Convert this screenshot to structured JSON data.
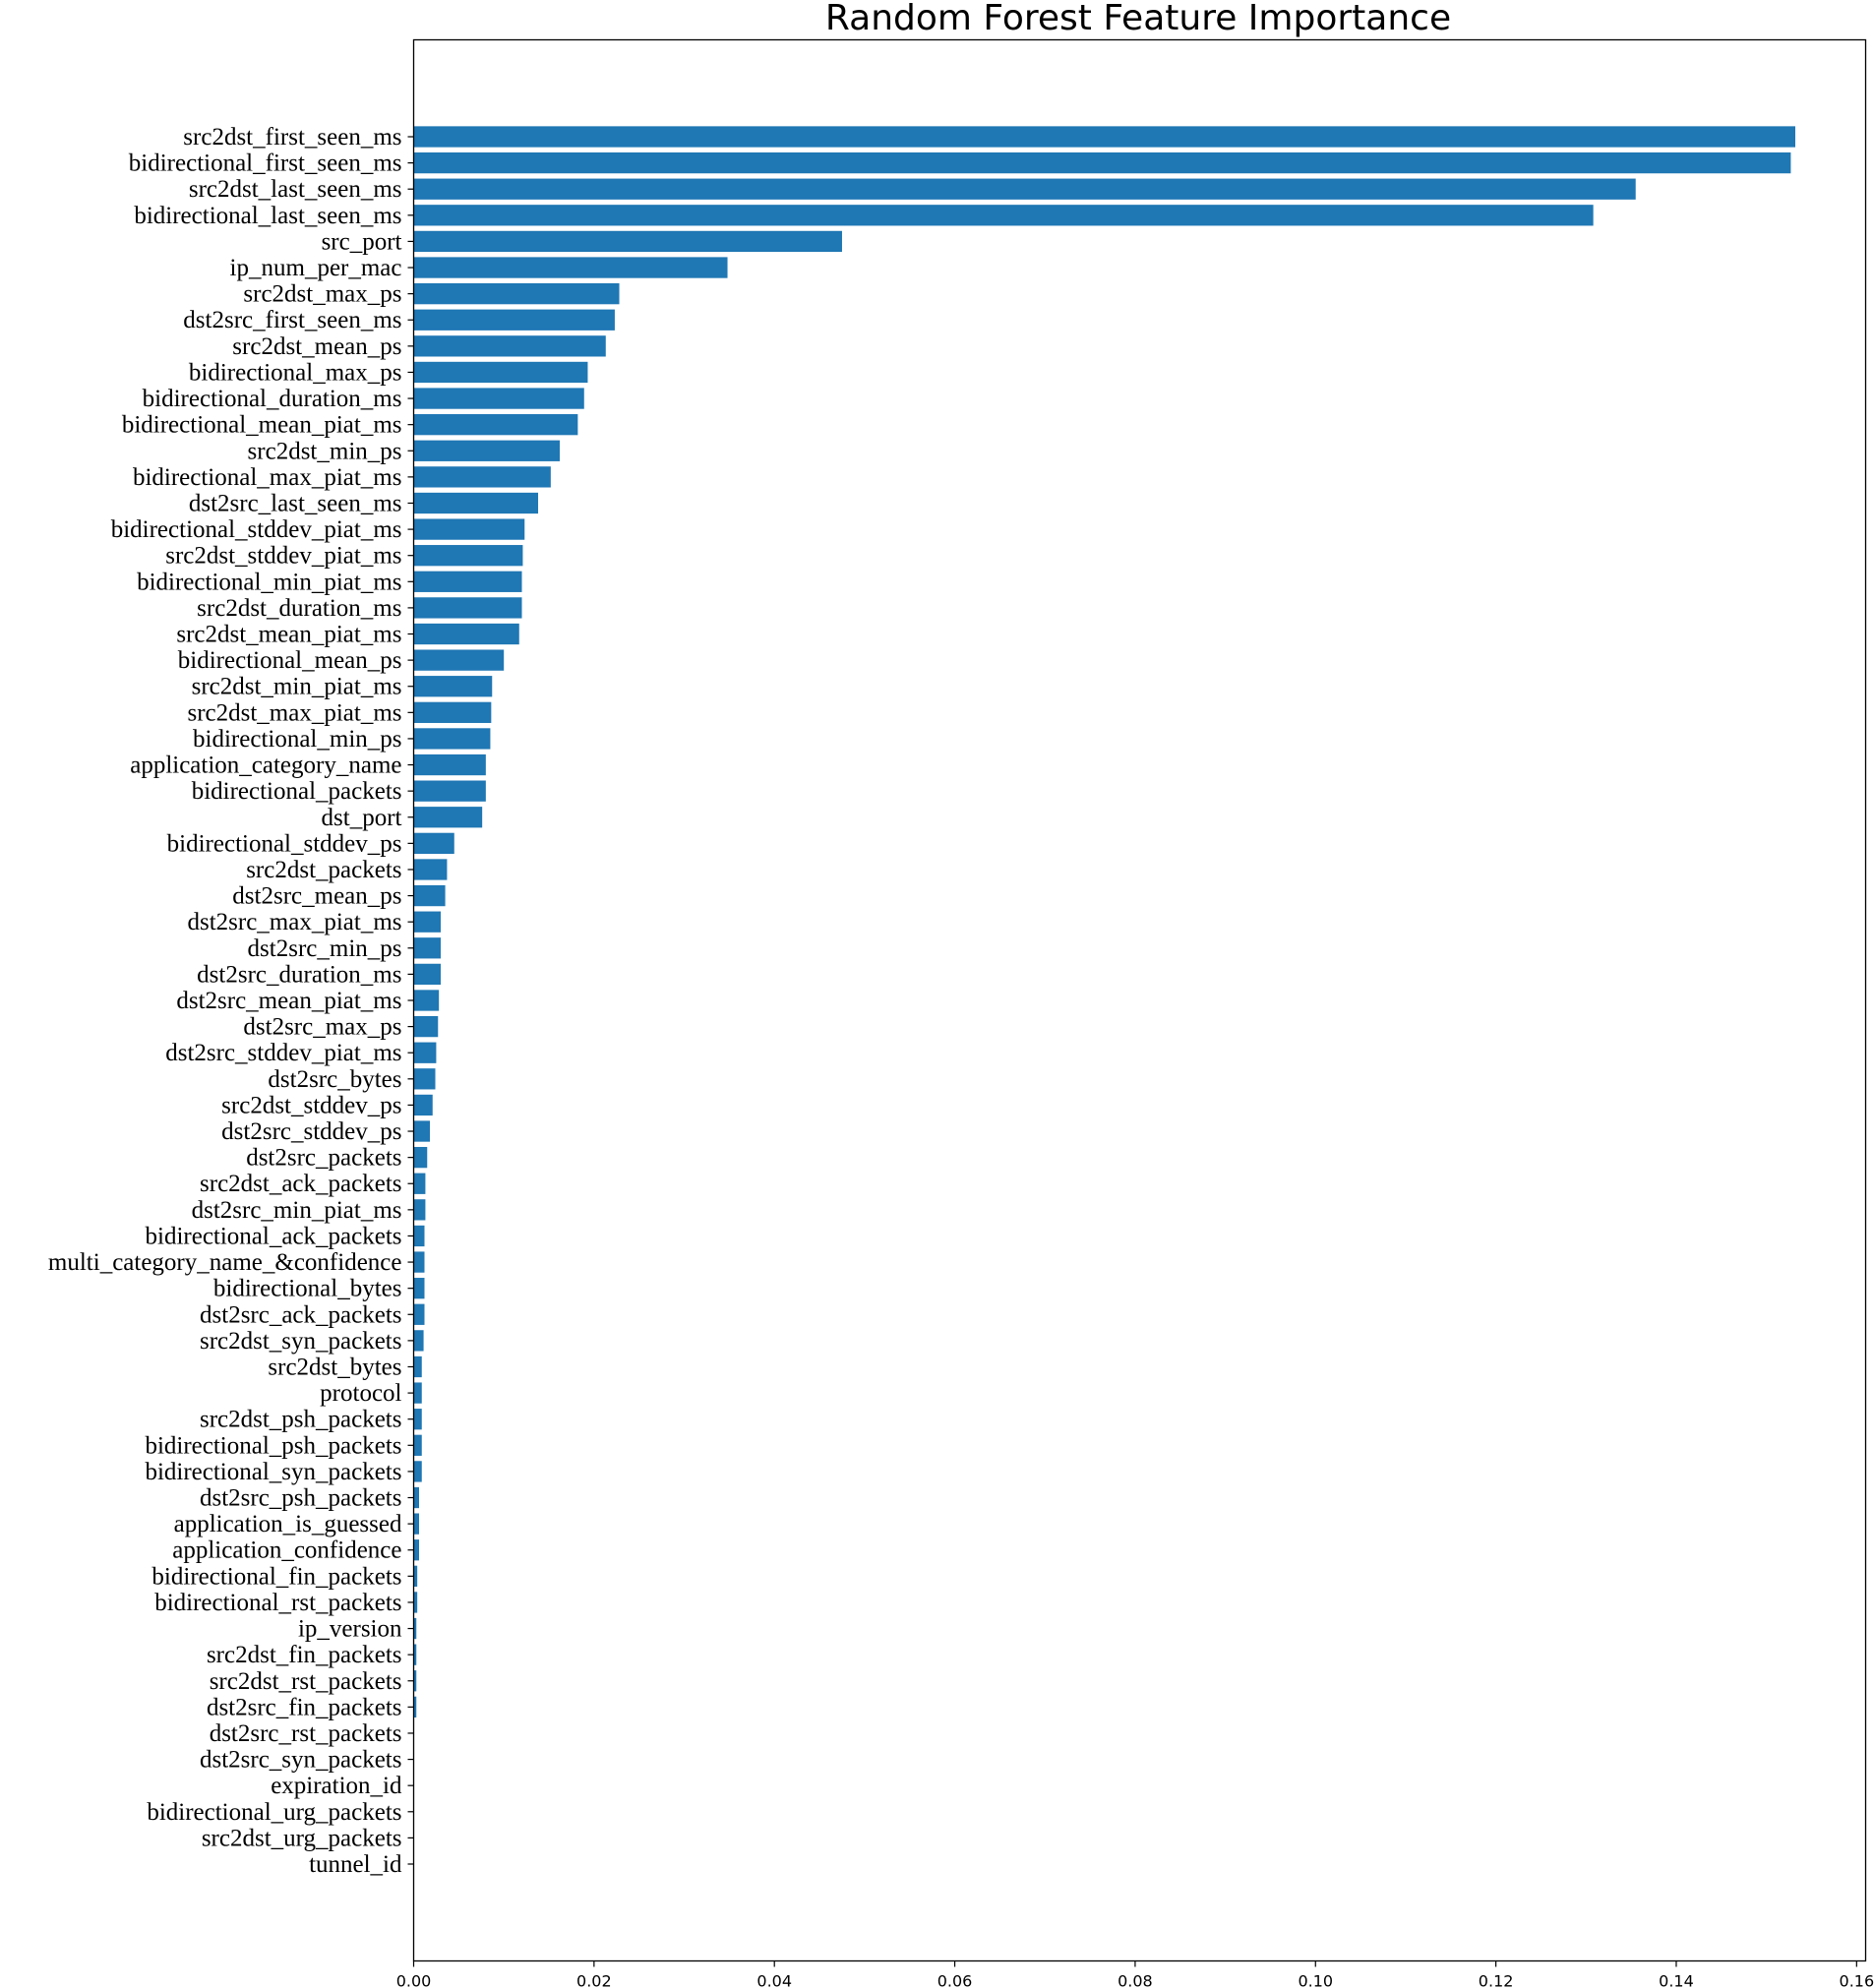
{
  "chart_data": {
    "type": "bar",
    "orientation": "horizontal",
    "title": "Random Forest Feature Importance",
    "xlabel": "",
    "ylabel": "",
    "xlim": [
      0,
      0.161
    ],
    "xticks": [
      "0.00",
      "0.02",
      "0.04",
      "0.06",
      "0.08",
      "0.10",
      "0.12",
      "0.14",
      "0.16"
    ],
    "grid": false,
    "bar_color": "#1f77b4",
    "categories": [
      "src2dst_first_seen_ms",
      "bidirectional_first_seen_ms",
      "src2dst_last_seen_ms",
      "bidirectional_last_seen_ms",
      "src_port",
      "ip_num_per_mac",
      "src2dst_max_ps",
      "dst2src_first_seen_ms",
      "src2dst_mean_ps",
      "bidirectional_max_ps",
      "bidirectional_duration_ms",
      "bidirectional_mean_piat_ms",
      "src2dst_min_ps",
      "bidirectional_max_piat_ms",
      "dst2src_last_seen_ms",
      "bidirectional_stddev_piat_ms",
      "src2dst_stddev_piat_ms",
      "bidirectional_min_piat_ms",
      "src2dst_duration_ms",
      "src2dst_mean_piat_ms",
      "bidirectional_mean_ps",
      "src2dst_min_piat_ms",
      "src2dst_max_piat_ms",
      "bidirectional_min_ps",
      "application_category_name",
      "bidirectional_packets",
      "dst_port",
      "bidirectional_stddev_ps",
      "src2dst_packets",
      "dst2src_mean_ps",
      "dst2src_max_piat_ms",
      "dst2src_min_ps",
      "dst2src_duration_ms",
      "dst2src_mean_piat_ms",
      "dst2src_max_ps",
      "dst2src_stddev_piat_ms",
      "dst2src_bytes",
      "src2dst_stddev_ps",
      "dst2src_stddev_ps",
      "dst2src_packets",
      "src2dst_ack_packets",
      "dst2src_min_piat_ms",
      "bidirectional_ack_packets",
      "multi_category_name_&confidence",
      "bidirectional_bytes",
      "dst2src_ack_packets",
      "src2dst_syn_packets",
      "src2dst_bytes",
      "protocol",
      "src2dst_psh_packets",
      "bidirectional_psh_packets",
      "bidirectional_syn_packets",
      "dst2src_psh_packets",
      "application_is_guessed",
      "application_confidence",
      "bidirectional_fin_packets",
      "bidirectional_rst_packets",
      "ip_version",
      "src2dst_fin_packets",
      "src2dst_rst_packets",
      "dst2src_fin_packets",
      "dst2src_rst_packets",
      "dst2src_syn_packets",
      "expiration_id",
      "bidirectional_urg_packets",
      "src2dst_urg_packets",
      "tunnel_id"
    ],
    "values": [
      0.1532,
      0.1527,
      0.1355,
      0.1308,
      0.0475,
      0.0348,
      0.0228,
      0.0223,
      0.0213,
      0.0193,
      0.0189,
      0.0182,
      0.0162,
      0.0152,
      0.0138,
      0.0123,
      0.0121,
      0.012,
      0.012,
      0.0117,
      0.01,
      0.0087,
      0.0086,
      0.0085,
      0.008,
      0.008,
      0.0076,
      0.0045,
      0.0037,
      0.0035,
      0.003,
      0.003,
      0.003,
      0.0028,
      0.0027,
      0.0025,
      0.0024,
      0.0021,
      0.0018,
      0.0015,
      0.0013,
      0.0013,
      0.0012,
      0.0012,
      0.0012,
      0.0012,
      0.0011,
      0.0009,
      0.0009,
      0.0009,
      0.0009,
      0.0009,
      0.0006,
      0.0006,
      0.0006,
      0.0004,
      0.0004,
      0.0003,
      0.0003,
      0.0003,
      0.0003,
      0.0,
      0.0,
      0.0,
      0.0,
      0.0,
      0.0
    ]
  }
}
